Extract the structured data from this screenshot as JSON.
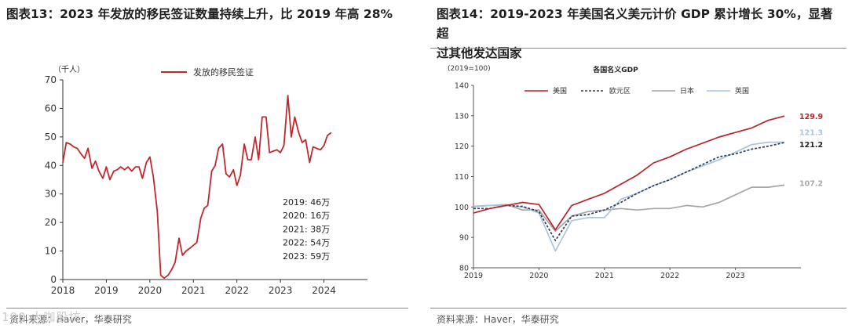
{
  "left": {
    "title": "图表13：2023 年发放的移民签证数量持续上升，比 2019 年高 28%",
    "source": "资料来源：Haver，华泰研究",
    "watermark": "100 大咖股坊",
    "chart_data": {
      "type": "line",
      "unit_label": "（千人）",
      "ylim": [
        0,
        70
      ],
      "yticks": [
        0,
        10,
        20,
        30,
        40,
        50,
        60,
        70
      ],
      "xlim": [
        2018,
        2025
      ],
      "xticks": [
        2018,
        2019,
        2020,
        2021,
        2022,
        2023,
        2024
      ],
      "legend_position": "top",
      "series": [
        {
          "name": "发放的移民签证",
          "color": "#c0282d",
          "x": [
            2018.0,
            2018.08,
            2018.17,
            2018.25,
            2018.33,
            2018.42,
            2018.5,
            2018.58,
            2018.67,
            2018.75,
            2018.83,
            2018.92,
            2019.0,
            2019.08,
            2019.17,
            2019.25,
            2019.33,
            2019.42,
            2019.5,
            2019.58,
            2019.67,
            2019.75,
            2019.83,
            2019.92,
            2020.0,
            2020.08,
            2020.17,
            2020.25,
            2020.33,
            2020.42,
            2020.5,
            2020.58,
            2020.67,
            2020.75,
            2020.83,
            2020.92,
            2021.0,
            2021.08,
            2021.17,
            2021.25,
            2021.33,
            2021.42,
            2021.5,
            2021.58,
            2021.67,
            2021.75,
            2021.83,
            2021.92,
            2022.0,
            2022.08,
            2022.17,
            2022.25,
            2022.33,
            2022.42,
            2022.5,
            2022.58,
            2022.67,
            2022.75,
            2022.83,
            2022.92,
            2023.0,
            2023.08,
            2023.17,
            2023.25,
            2023.33,
            2023.42,
            2023.5,
            2023.58,
            2023.67,
            2023.75,
            2023.83,
            2023.92,
            2024.0,
            2024.08,
            2024.17
          ],
          "values": [
            41,
            48,
            47.5,
            46.5,
            46,
            44,
            42.5,
            46,
            39,
            41.5,
            38,
            35.5,
            39.5,
            35,
            38,
            38.5,
            39.5,
            38.5,
            39.5,
            38,
            39.5,
            39.5,
            35.5,
            41,
            43,
            36,
            24,
            1.5,
            0.5,
            1.5,
            3.5,
            6,
            14.5,
            8.5,
            10,
            11,
            12,
            13,
            21.5,
            25,
            26,
            38,
            40,
            46,
            47.5,
            37,
            36,
            38.5,
            33,
            36.5,
            47.5,
            42,
            42,
            50,
            42,
            57,
            57,
            44.5,
            45,
            45.5,
            44.5,
            47,
            64.5,
            50,
            57,
            51.5,
            48,
            49,
            41,
            46.5,
            46,
            45.5,
            47,
            50.5,
            51.5
          ]
        }
      ],
      "annotations": [
        "2019: 46万",
        "2020: 16万",
        "2021: 38万",
        "2022: 54万",
        "2023: 59万"
      ]
    }
  },
  "right": {
    "title_line1": "图表14：2019-2023 年美国名义美元计价 GDP 累计增长 30%，显著超",
    "title_line2": "过其他发达国家",
    "source": "资料来源：Haver，华泰研究",
    "chart_data": {
      "type": "line",
      "title": "各国名义GDP",
      "unit_label": "(2019=100)",
      "ylim": [
        80,
        140
      ],
      "yticks": [
        80,
        90,
        100,
        110,
        120,
        130,
        140
      ],
      "xlim": [
        2019,
        2024
      ],
      "xticks": [
        2019,
        2020,
        2021,
        2022,
        2023
      ],
      "legend_position": "top",
      "series": [
        {
          "name": "美国",
          "color": "#b8242b",
          "dash": "",
          "end_label": "129.9",
          "x": [
            2019,
            2019.25,
            2019.5,
            2019.75,
            2020,
            2020.25,
            2020.5,
            2020.75,
            2021,
            2021.25,
            2021.5,
            2021.75,
            2022,
            2022.25,
            2022.5,
            2022.75,
            2023,
            2023.25,
            2023.5,
            2023.75
          ],
          "values": [
            98,
            99.5,
            100.5,
            101.5,
            100.8,
            92.5,
            100.5,
            102.5,
            104.5,
            107.5,
            110.5,
            114.5,
            116.5,
            119,
            121,
            123,
            124.5,
            126,
            128.5,
            129.9
          ]
        },
        {
          "name": "欧元区",
          "color": "#2f3d5a",
          "dash": "3,2",
          "end_label": "121.2",
          "x": [
            2019,
            2019.25,
            2019.5,
            2019.75,
            2020,
            2020.25,
            2020.5,
            2020.75,
            2021,
            2021.25,
            2021.5,
            2021.75,
            2022,
            2022.25,
            2022.5,
            2022.75,
            2023,
            2023.25,
            2023.5,
            2023.75
          ],
          "values": [
            99.5,
            99.5,
            100.5,
            100.2,
            98.5,
            89,
            97,
            97.5,
            99,
            101.5,
            104.5,
            107,
            109,
            111.5,
            114,
            116.5,
            117.5,
            119,
            120,
            121.2
          ]
        },
        {
          "name": "日本",
          "color": "#a6a6a6",
          "dash": "",
          "end_label": "107.2",
          "x": [
            2019,
            2019.25,
            2019.5,
            2019.75,
            2020,
            2020.25,
            2020.5,
            2020.75,
            2021,
            2021.25,
            2021.5,
            2021.75,
            2022,
            2022.25,
            2022.5,
            2022.75,
            2023,
            2023.25,
            2023.5,
            2023.75
          ],
          "values": [
            100.2,
            100.5,
            100.8,
            99,
            99,
            92,
            97,
            98.5,
            99,
            99.5,
            99,
            99.5,
            99.5,
            100.5,
            100,
            101.5,
            104,
            106.5,
            106.5,
            107.2
          ]
        },
        {
          "name": "英国",
          "color": "#a9c4e0",
          "dash": "",
          "end_label": "121.3",
          "x": [
            2019,
            2019.25,
            2019.5,
            2019.75,
            2020,
            2020.25,
            2020.5,
            2020.75,
            2021,
            2021.25,
            2021.5,
            2021.75,
            2022,
            2022.25,
            2022.5,
            2022.75,
            2023,
            2023.25,
            2023.5,
            2023.75
          ],
          "values": [
            100,
            100.5,
            100.5,
            100,
            98,
            85.5,
            95.5,
            96.5,
            96.5,
            102.5,
            104.5,
            107,
            109,
            111.5,
            113.5,
            115.5,
            118,
            120.5,
            121.3,
            121.3
          ]
        }
      ]
    }
  }
}
